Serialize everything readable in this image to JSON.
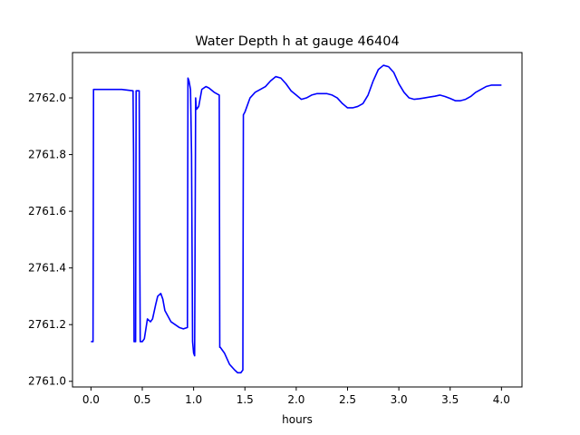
{
  "chart_data": {
    "type": "line",
    "title": "Water Depth h at gauge 46404",
    "xlabel": "hours",
    "ylabel": "",
    "xlim": [
      -0.18,
      4.2
    ],
    "ylim": [
      2760.98,
      2762.16
    ],
    "xticks": [
      0.0,
      0.5,
      1.0,
      1.5,
      2.0,
      2.5,
      3.0,
      3.5,
      4.0
    ],
    "xtick_labels": [
      "0.0",
      "0.5",
      "1.0",
      "1.5",
      "2.0",
      "2.5",
      "3.0",
      "3.5",
      "4.0"
    ],
    "yticks": [
      2761.0,
      2761.2,
      2761.4,
      2761.6,
      2761.8,
      2762.0
    ],
    "ytick_labels": [
      "2761.0",
      "2761.2",
      "2761.4",
      "2761.6",
      "2761.8",
      "2762.0"
    ],
    "grid": false,
    "legend": "none",
    "series": [
      {
        "color": "#0000ff",
        "x": [
          0.0,
          0.02,
          0.025,
          0.1,
          0.2,
          0.3,
          0.41,
          0.415,
          0.42,
          0.425,
          0.43,
          0.435,
          0.44,
          0.47,
          0.475,
          0.48,
          0.5,
          0.52,
          0.55,
          0.58,
          0.6,
          0.63,
          0.65,
          0.68,
          0.7,
          0.72,
          0.75,
          0.78,
          0.82,
          0.86,
          0.9,
          0.94,
          0.945,
          0.955,
          0.97,
          0.98,
          0.99,
          1.0,
          1.01,
          1.02,
          1.025,
          1.03,
          1.05,
          1.08,
          1.12,
          1.15,
          1.2,
          1.25,
          1.255,
          1.26,
          1.3,
          1.35,
          1.4,
          1.43,
          1.46,
          1.48,
          1.485,
          1.5,
          1.55,
          1.6,
          1.65,
          1.7,
          1.75,
          1.8,
          1.85,
          1.9,
          1.95,
          2.0,
          2.05,
          2.1,
          2.15,
          2.2,
          2.25,
          2.3,
          2.35,
          2.4,
          2.45,
          2.5,
          2.55,
          2.6,
          2.65,
          2.7,
          2.75,
          2.8,
          2.85,
          2.9,
          2.95,
          3.0,
          3.05,
          3.1,
          3.15,
          3.2,
          3.25,
          3.3,
          3.35,
          3.4,
          3.45,
          3.5,
          3.55,
          3.6,
          3.65,
          3.7,
          3.75,
          3.8,
          3.85,
          3.9,
          3.95,
          4.0
        ],
        "y": [
          2761.14,
          2761.14,
          2762.03,
          2762.03,
          2762.03,
          2762.03,
          2762.025,
          2761.8,
          2761.14,
          2761.14,
          2761.14,
          2761.14,
          2762.025,
          2762.025,
          2761.5,
          2761.14,
          2761.14,
          2761.15,
          2761.22,
          2761.21,
          2761.22,
          2761.27,
          2761.3,
          2761.31,
          2761.29,
          2761.25,
          2761.23,
          2761.21,
          2761.2,
          2761.19,
          2761.185,
          2761.19,
          2762.07,
          2762.06,
          2762.03,
          2761.8,
          2761.14,
          2761.1,
          2761.09,
          2762.0,
          2761.97,
          2761.96,
          2761.97,
          2762.03,
          2762.04,
          2762.035,
          2762.02,
          2762.01,
          2761.12,
          2761.12,
          2761.1,
          2761.06,
          2761.04,
          2761.03,
          2761.03,
          2761.04,
          2761.94,
          2761.95,
          2762.0,
          2762.02,
          2762.03,
          2762.04,
          2762.06,
          2762.075,
          2762.07,
          2762.05,
          2762.025,
          2762.01,
          2761.995,
          2762.0,
          2762.01,
          2762.015,
          2762.015,
          2762.015,
          2762.01,
          2762.0,
          2761.98,
          2761.965,
          2761.965,
          2761.97,
          2761.98,
          2762.01,
          2762.06,
          2762.1,
          2762.115,
          2762.11,
          2762.09,
          2762.05,
          2762.02,
          2762.0,
          2761.995,
          2761.997,
          2762.0,
          2762.003,
          2762.006,
          2762.01,
          2762.005,
          2761.998,
          2761.99,
          2761.99,
          2761.995,
          2762.005,
          2762.02,
          2762.03,
          2762.04,
          2762.045,
          2762.045,
          2762.045
        ]
      }
    ]
  }
}
